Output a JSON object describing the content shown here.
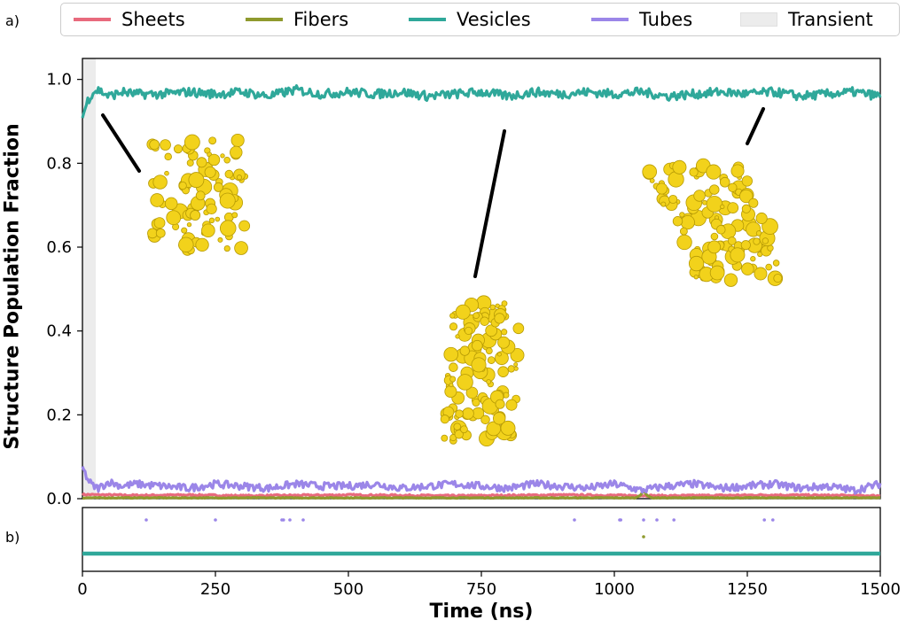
{
  "panel_labels": {
    "a": "a)",
    "b": "b)"
  },
  "legend": [
    {
      "label": "Sheets",
      "color": "#e86a7d",
      "kind": "line"
    },
    {
      "label": "Fibers",
      "color": "#8f9a2e",
      "kind": "line"
    },
    {
      "label": "Vesicles",
      "color": "#2fa89a",
      "kind": "line"
    },
    {
      "label": "Tubes",
      "color": "#9b86e8",
      "kind": "line"
    },
    {
      "label": "Transient",
      "color": "#ececec",
      "kind": "patch"
    }
  ],
  "chart_data": [
    {
      "panel": "a",
      "type": "line",
      "xlabel": "Time (ns)",
      "ylabel": "Structure Population Fraction",
      "xlim": [
        0,
        1500
      ],
      "ylim": [
        0.0,
        1.05
      ],
      "xticks": [
        0,
        250,
        500,
        750,
        1000,
        1250,
        1500
      ],
      "yticks": [
        0.0,
        0.2,
        0.4,
        0.6,
        0.8,
        1.0
      ],
      "ytick_labels": [
        "0.0",
        "0.2",
        "0.4",
        "0.6",
        "0.8",
        "1.0"
      ],
      "transient_region": [
        0,
        25
      ],
      "series": [
        {
          "name": "Vesicles",
          "color": "#2fa89a",
          "x": [
            0,
            10,
            20,
            30,
            50,
            75,
            100,
            150,
            200,
            250,
            300,
            350,
            400,
            450,
            500,
            550,
            600,
            650,
            700,
            750,
            800,
            850,
            900,
            950,
            1000,
            1050,
            1100,
            1150,
            1200,
            1250,
            1300,
            1350,
            1400,
            1450,
            1500
          ],
          "y": [
            0.91,
            0.95,
            0.97,
            0.975,
            0.96,
            0.97,
            0.965,
            0.965,
            0.97,
            0.965,
            0.97,
            0.96,
            0.975,
            0.965,
            0.97,
            0.965,
            0.97,
            0.96,
            0.965,
            0.97,
            0.96,
            0.97,
            0.965,
            0.97,
            0.965,
            0.97,
            0.96,
            0.965,
            0.97,
            0.965,
            0.97,
            0.96,
            0.965,
            0.97,
            0.96
          ]
        },
        {
          "name": "Tubes",
          "color": "#9b86e8",
          "x": [
            0,
            10,
            20,
            30,
            50,
            75,
            100,
            150,
            200,
            250,
            300,
            350,
            400,
            450,
            500,
            550,
            600,
            650,
            700,
            750,
            800,
            850,
            900,
            950,
            1000,
            1050,
            1100,
            1150,
            1200,
            1250,
            1300,
            1350,
            1400,
            1450,
            1500
          ],
          "y": [
            0.075,
            0.045,
            0.03,
            0.025,
            0.04,
            0.03,
            0.035,
            0.03,
            0.025,
            0.035,
            0.03,
            0.025,
            0.035,
            0.03,
            0.03,
            0.035,
            0.025,
            0.03,
            0.035,
            0.03,
            0.025,
            0.035,
            0.03,
            0.025,
            0.035,
            0.02,
            0.03,
            0.035,
            0.025,
            0.03,
            0.035,
            0.025,
            0.03,
            0.02,
            0.035
          ]
        },
        {
          "name": "Sheets",
          "color": "#e86a7d",
          "x": [
            0,
            100,
            200,
            300,
            400,
            500,
            600,
            700,
            800,
            900,
            1000,
            1100,
            1200,
            1300,
            1400,
            1500
          ],
          "y": [
            0.01,
            0.008,
            0.009,
            0.007,
            0.008,
            0.009,
            0.008,
            0.007,
            0.008,
            0.009,
            0.008,
            0.007,
            0.008,
            0.009,
            0.008,
            0.007
          ]
        },
        {
          "name": "Fibers",
          "color": "#8f9a2e",
          "x": [
            0,
            1040,
            1050,
            1055,
            1060,
            1070,
            1500
          ],
          "y": [
            0.002,
            0.002,
            0.01,
            0.02,
            0.01,
            0.002,
            0.002
          ]
        }
      ]
    },
    {
      "panel": "b",
      "type": "scatter",
      "xlim": [
        0,
        1500
      ],
      "series": [
        {
          "name": "Tubes",
          "color": "#9b86e8",
          "x": [
            120,
            250,
            375,
            378,
            390,
            415,
            925,
            1010,
            1012,
            1055,
            1080,
            1112,
            1282,
            1298
          ]
        },
        {
          "name": "Fibers",
          "color": "#8f9a2e",
          "x": [
            1055
          ]
        },
        {
          "name": "Vesicles",
          "color": "#2fa89a",
          "x_range": [
            0,
            1500
          ]
        }
      ]
    }
  ]
}
